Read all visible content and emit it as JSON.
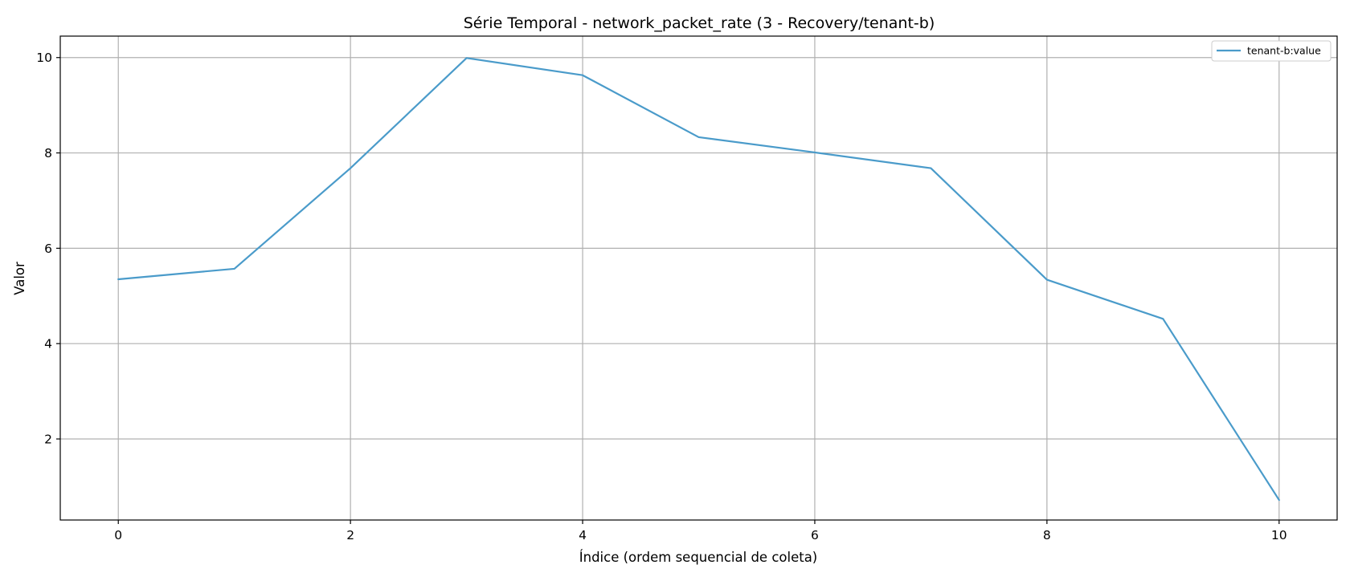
{
  "chart_data": {
    "type": "line",
    "title": "Série Temporal - network_packet_rate (3 - Recovery/tenant-b)",
    "xlabel": "Índice (ordem sequencial de coleta)",
    "ylabel": "Valor",
    "xlim": [
      -0.5,
      10.5
    ],
    "ylim": [
      0.3,
      10.45
    ],
    "xticks": [
      0,
      2,
      4,
      6,
      8,
      10
    ],
    "yticks": [
      2,
      4,
      6,
      8,
      10
    ],
    "grid": true,
    "legend_position": "top-right",
    "x": [
      0,
      1,
      2,
      3,
      4,
      5,
      6,
      7,
      8,
      9,
      10
    ],
    "series": [
      {
        "name": "tenant-b:value",
        "color": "#4a9bca",
        "values": [
          5.35,
          5.57,
          7.68,
          9.99,
          9.63,
          8.33,
          8.01,
          7.68,
          5.34,
          4.52,
          0.72
        ]
      }
    ]
  }
}
